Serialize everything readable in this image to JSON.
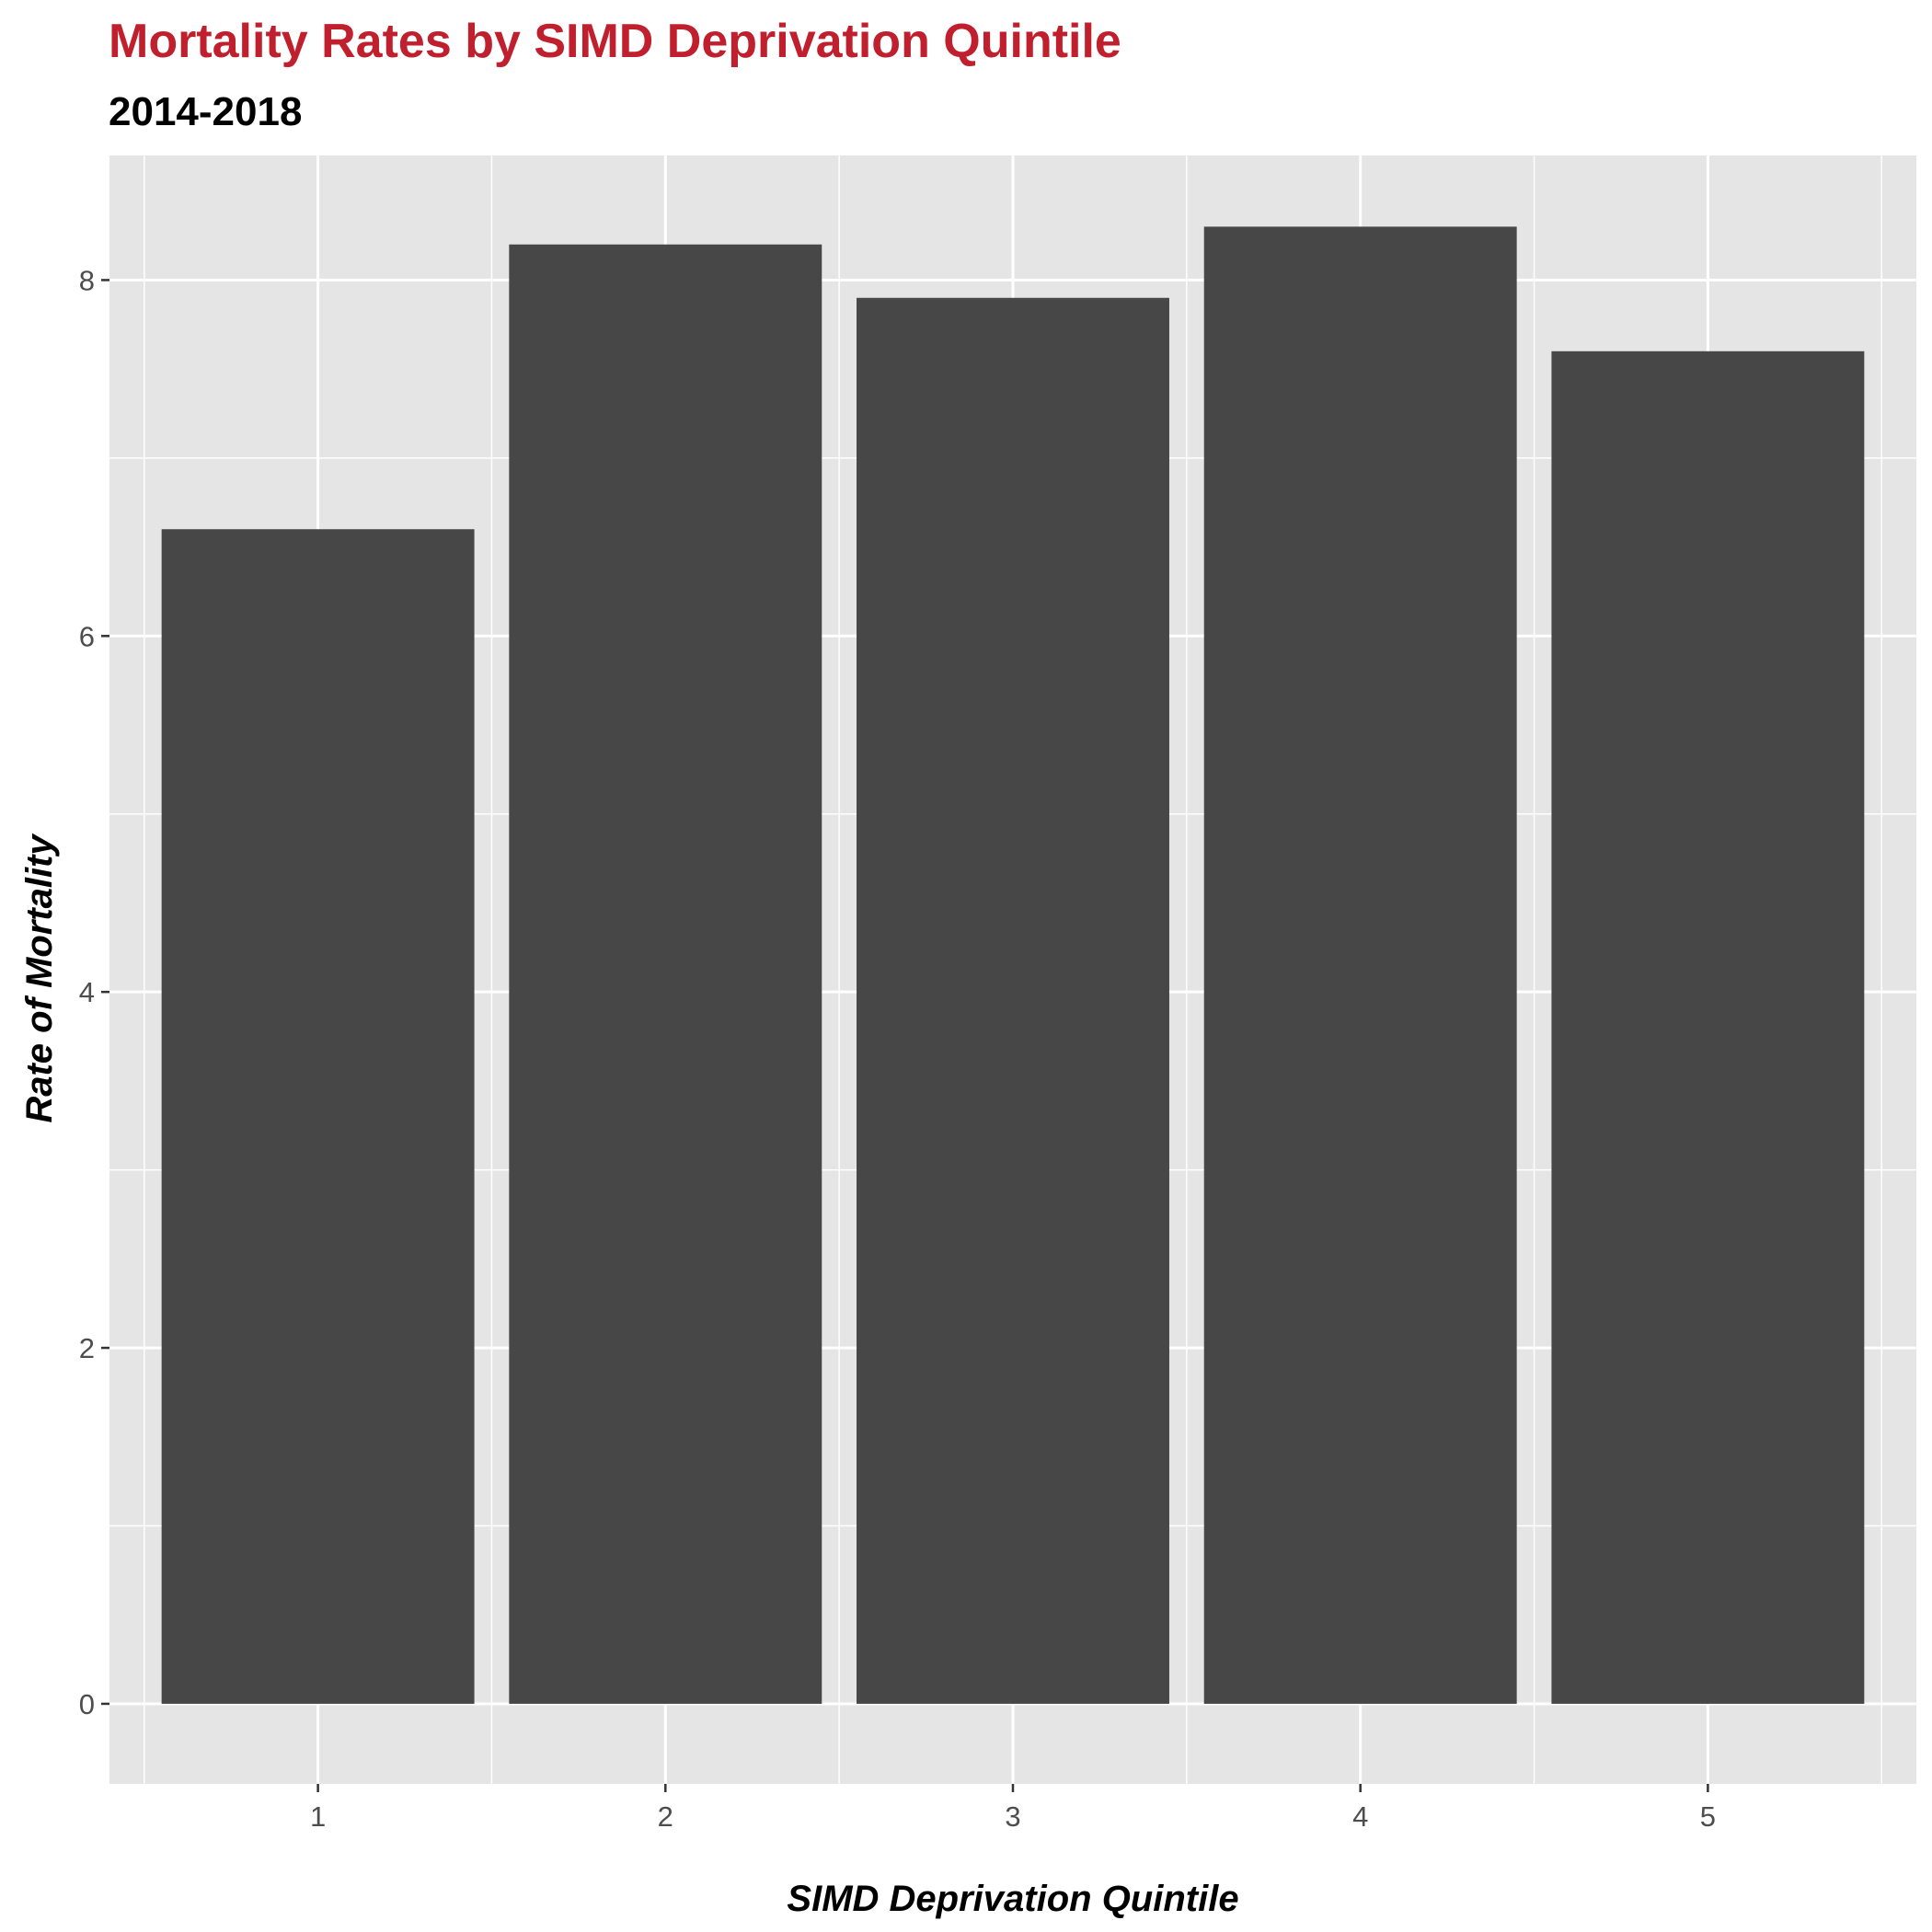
{
  "chart_data": {
    "type": "bar",
    "title": "Mortality Rates by SIMD Deprivation Quintile",
    "subtitle": "2014-2018",
    "xlabel": "SIMD Deprivation Quintile",
    "ylabel": "Rate of Mortality",
    "categories": [
      "1",
      "2",
      "3",
      "4",
      "5"
    ],
    "values": [
      6.6,
      8.2,
      7.9,
      8.3,
      7.6
    ],
    "ylim": [
      -0.45,
      8.7
    ],
    "y_ticks": [
      "0",
      "2",
      "4",
      "6",
      "8"
    ],
    "grid": true,
    "legend": "none"
  },
  "colors": {
    "title": "#C0202E",
    "bar": "#474747",
    "panel_background": "#E5E5E5",
    "grid_line": "#FFFFFF",
    "tick_label": "#4D4D4D"
  }
}
